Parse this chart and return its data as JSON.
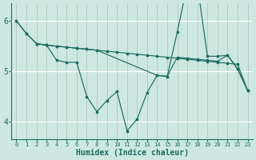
{
  "xlabel": "Humidex (Indice chaleur)",
  "bg_color": "#cce8e0",
  "grid_color_main": "#b0d8d0",
  "grid_color_red": "#e8b0b0",
  "line_color": "#1e6b5e",
  "ylim": [
    3.65,
    6.35
  ],
  "yticks": [
    4,
    5,
    6
  ],
  "xlim": [
    -0.5,
    23.5
  ],
  "line1_x": [
    0,
    1,
    2,
    3,
    4,
    5,
    6,
    7,
    8,
    9,
    10,
    11,
    12,
    13,
    14,
    15,
    16,
    17,
    18,
    19,
    20,
    21,
    22,
    23
  ],
  "line1_y": [
    6.0,
    5.75,
    5.55,
    5.52,
    5.5,
    5.48,
    5.46,
    5.44,
    5.42,
    5.4,
    5.38,
    5.36,
    5.34,
    5.32,
    5.3,
    5.28,
    5.26,
    5.24,
    5.22,
    5.2,
    5.18,
    5.16,
    5.14,
    4.62
  ],
  "line2_x": [
    0,
    1,
    2,
    3,
    4,
    5,
    6,
    7,
    8,
    9,
    10,
    11,
    12,
    13,
    14,
    15,
    16,
    17,
    18,
    19,
    20,
    21,
    22,
    23
  ],
  "line2_y": [
    6.0,
    5.75,
    5.55,
    5.52,
    5.22,
    5.18,
    5.18,
    4.5,
    4.2,
    4.42,
    4.6,
    3.82,
    4.05,
    4.58,
    4.92,
    4.9,
    5.78,
    6.72,
    6.72,
    5.3,
    5.3,
    5.32,
    5.05,
    4.62
  ],
  "line3_x": [
    2,
    3,
    4,
    5,
    6,
    7,
    8,
    14,
    15,
    16,
    17,
    18,
    19,
    20,
    21,
    22,
    23
  ],
  "line3_y": [
    5.55,
    5.52,
    5.5,
    5.48,
    5.46,
    5.44,
    5.42,
    4.92,
    4.9,
    5.28,
    5.26,
    5.24,
    5.22,
    5.2,
    5.32,
    5.05,
    4.62
  ]
}
